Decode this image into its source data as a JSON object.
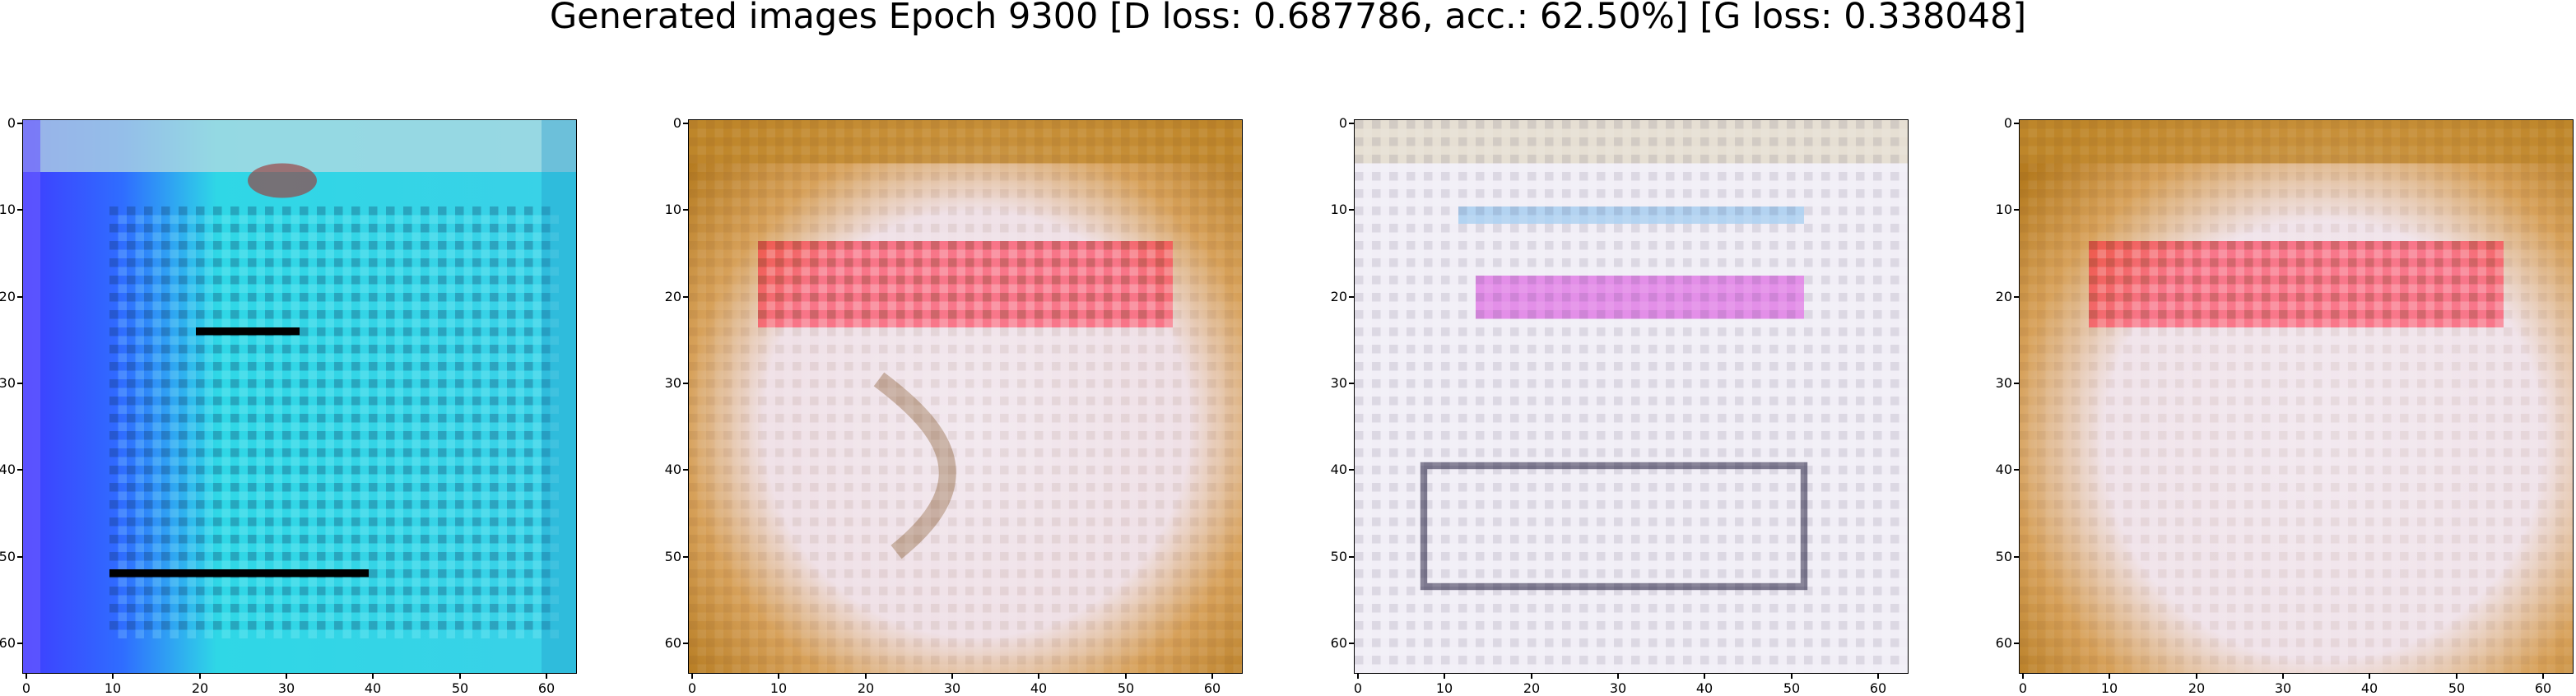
{
  "figure": {
    "title": "Generated images Epoch 9300 [D loss: 0.687786, acc.: 62.50%] [G loss: 0.338048]"
  },
  "axes": {
    "x_ticks": [
      "0",
      "10",
      "20",
      "30",
      "40",
      "50",
      "60"
    ],
    "y_ticks": [
      "0",
      "10",
      "20",
      "30",
      "40",
      "50",
      "60"
    ],
    "xlim": [
      -0.5,
      63.5
    ],
    "ylim": [
      63.5,
      -0.5
    ]
  },
  "panels": [
    {
      "name": "generated-image-1",
      "palette": [
        "#2dd4e6",
        "#3b5bff",
        "#1a2a3a",
        "#7fe9e9",
        "#5a3cff"
      ]
    },
    {
      "name": "generated-image-2",
      "palette": [
        "#c98a1e",
        "#ff1e3a",
        "#f2e8ef",
        "#7a4a1a",
        "#e7b36a"
      ]
    },
    {
      "name": "generated-image-3",
      "palette": [
        "#f1eef6",
        "#d21bd6",
        "#1d1a3a",
        "#3fa0e8",
        "#f5d5ee"
      ]
    },
    {
      "name": "generated-image-4",
      "palette": [
        "#c98a1e",
        "#ff1e3a",
        "#f2e8ef",
        "#7a4a1a",
        "#e7b36a"
      ]
    }
  ]
}
